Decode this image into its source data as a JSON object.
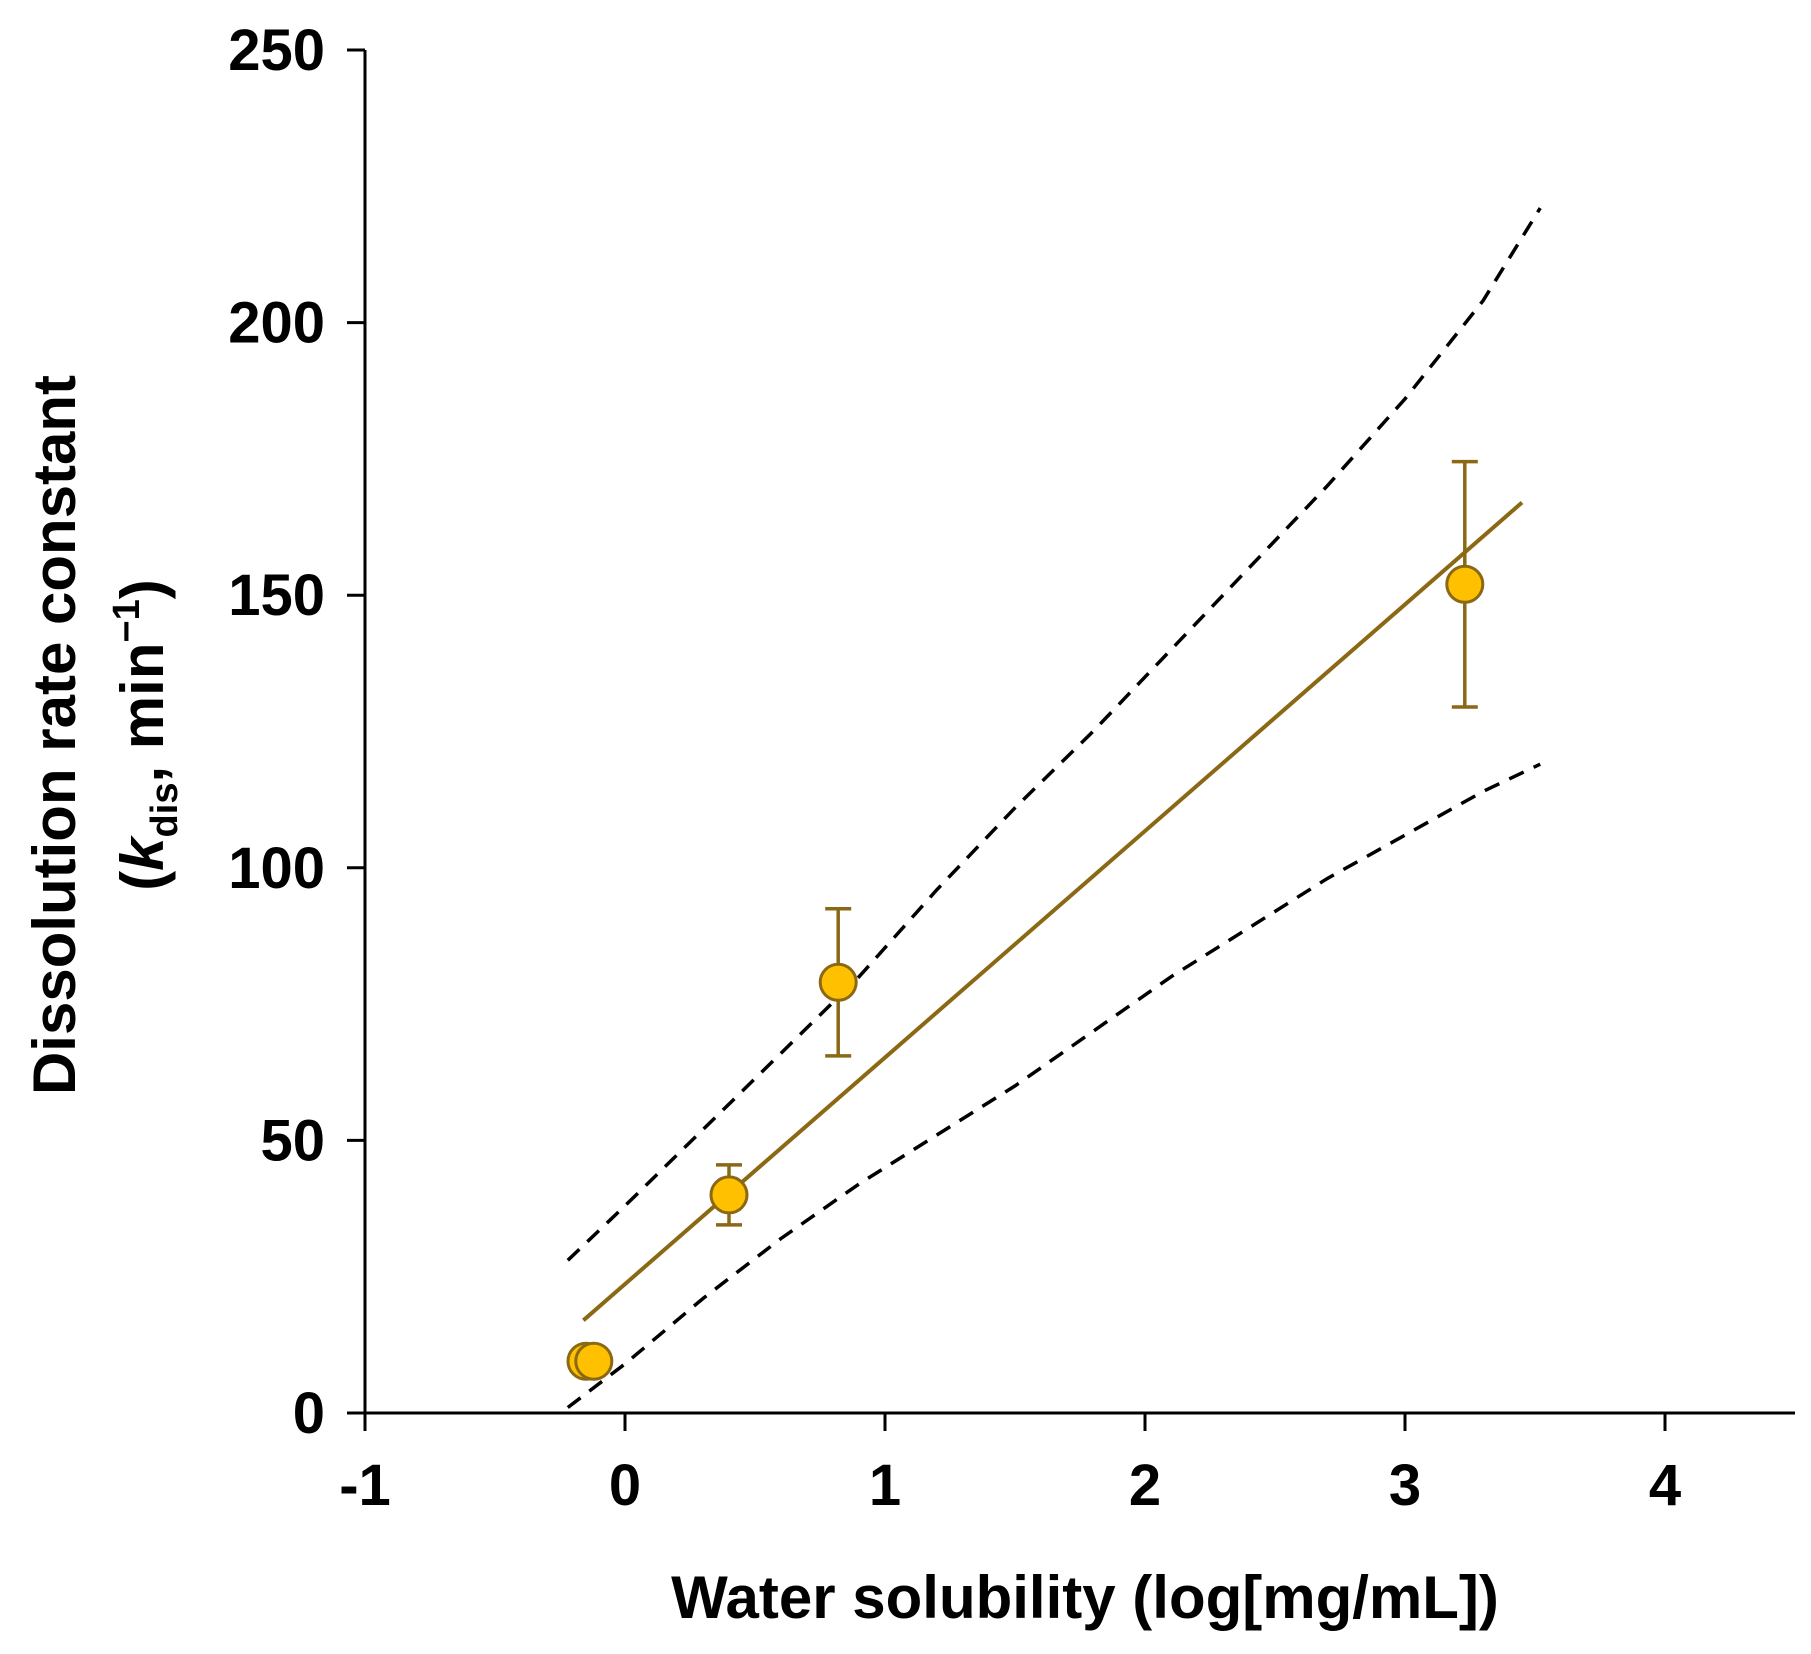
{
  "chart_data": {
    "type": "scatter",
    "title": "",
    "xlabel": "Water solubility (log[mg/mL])",
    "ylabel_line1": "Dissolution rate constant",
    "ylabel_line2": {
      "open": "(",
      "k": "k",
      "sub": "dis",
      "rest": ", min",
      "sup": "−1",
      "close": ")"
    },
    "xlim": [
      -1,
      4.5
    ],
    "ylim": [
      0,
      250
    ],
    "x_ticks": [
      -1,
      0,
      1,
      2,
      3,
      4
    ],
    "x_tick_labels": [
      "-1",
      "0",
      "1",
      "2",
      "3",
      "4"
    ],
    "y_ticks": [
      0,
      50,
      100,
      150,
      200,
      250
    ],
    "y_tick_labels": [
      "0",
      "50",
      "100",
      "150",
      "200",
      "250"
    ],
    "grid": false,
    "legend": "none",
    "colors": {
      "marker_fill": "#FFC000",
      "marker_edge": "#8B6914",
      "fit_line": "#8B6914",
      "band": "#000000"
    },
    "points": [
      {
        "x": -0.15,
        "y": 9.5,
        "err": null
      },
      {
        "x": -0.12,
        "y": 9.5,
        "err": null
      },
      {
        "x": 0.4,
        "y": 40,
        "err": 5.5
      },
      {
        "x": 0.82,
        "y": 79,
        "err": 13.5
      },
      {
        "x": 3.23,
        "y": 152,
        "err": 22.5
      }
    ],
    "fit_line": {
      "x": [
        -0.16,
        3.45
      ],
      "y": [
        17,
        167
      ]
    },
    "upper_band": {
      "x": [
        -0.22,
        0.0,
        0.3,
        0.6,
        0.9,
        1.2,
        1.5,
        1.8,
        2.1,
        2.4,
        2.7,
        3.0,
        3.3,
        3.52
      ],
      "y": [
        28,
        38,
        52,
        66,
        80,
        96,
        111,
        125,
        140,
        155,
        170,
        186,
        204,
        221
      ]
    },
    "lower_band": {
      "x": [
        -0.22,
        0.0,
        0.3,
        0.6,
        0.9,
        1.2,
        1.5,
        1.8,
        2.1,
        2.4,
        2.7,
        3.0,
        3.3,
        3.52
      ],
      "y": [
        1,
        9,
        21,
        32,
        42,
        51,
        60,
        70,
        80,
        89,
        98,
        106,
        114,
        119
      ]
    }
  }
}
